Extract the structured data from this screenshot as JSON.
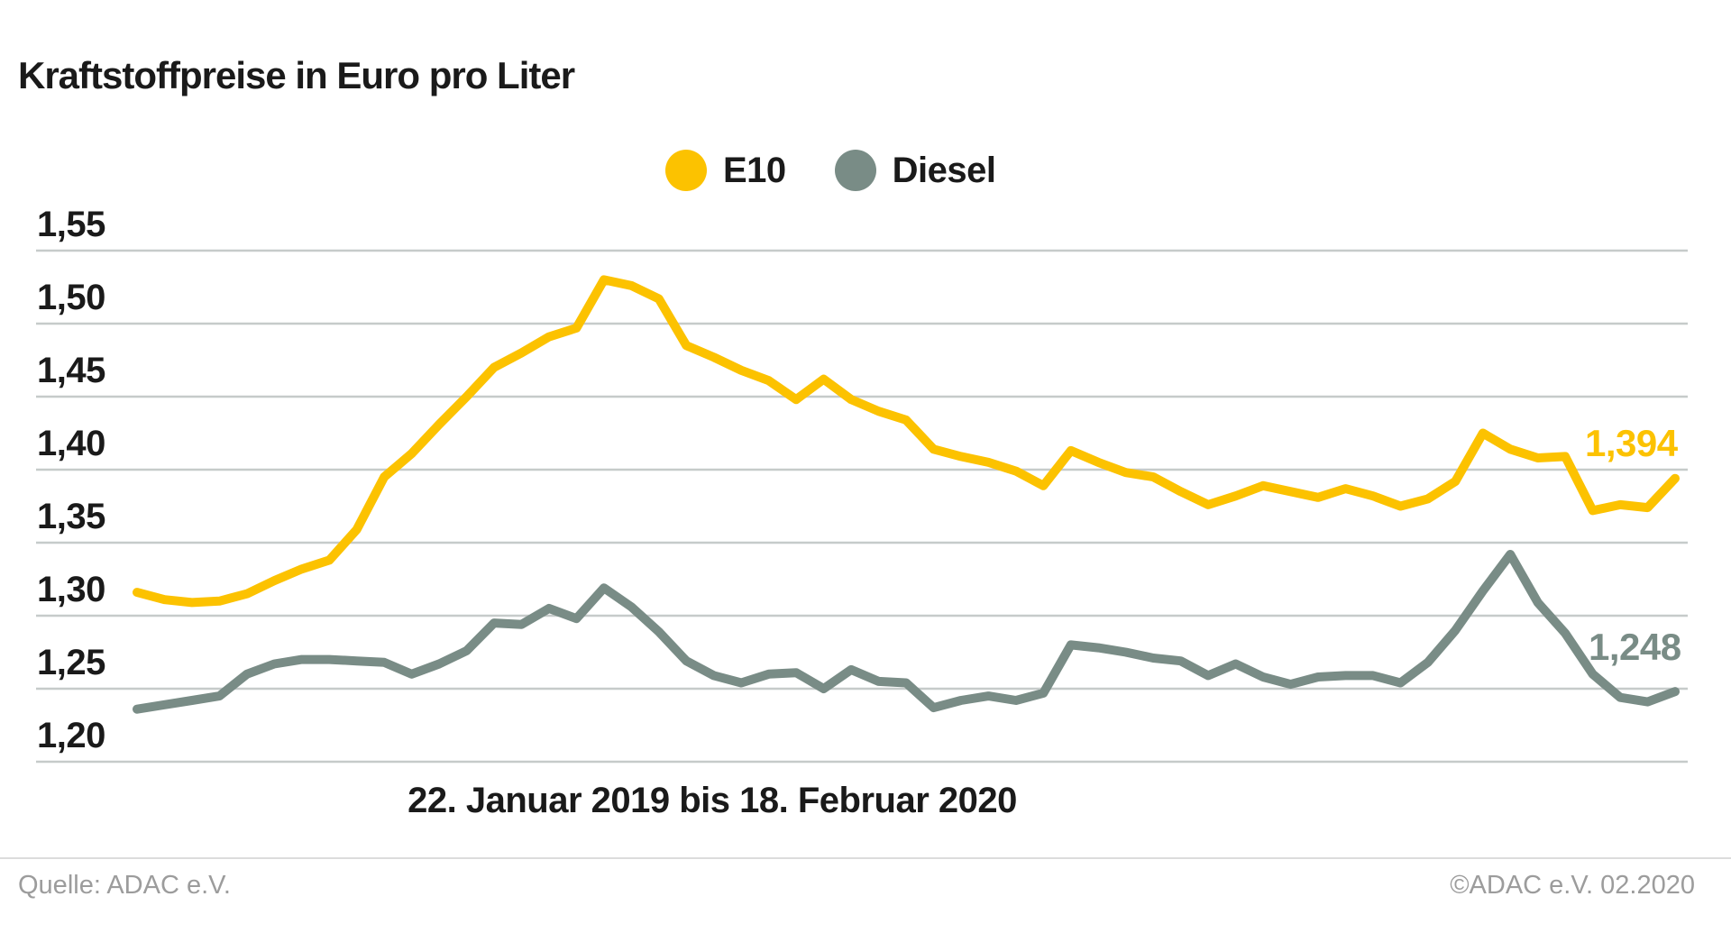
{
  "title": "Kraftstoffpreise in Euro pro Liter",
  "legend": [
    {
      "label": "E10",
      "color": "#FCC200"
    },
    {
      "label": "Diesel",
      "color": "#798C86"
    }
  ],
  "chart_data": {
    "type": "line",
    "title": "Kraftstoffpreise in Euro pro Liter",
    "xlabel": "22. Januar 2019 bis 18. Februar 2020",
    "ylabel": "Euro pro Liter",
    "ylim": [
      1.2,
      1.55
    ],
    "grid": true,
    "legend_position": "top-center",
    "y_ticks": [
      "1,55",
      "1,50",
      "1,45",
      "1,40",
      "1,35",
      "1,30",
      "1,25",
      "1,20"
    ],
    "y_tick_values": [
      1.55,
      1.5,
      1.45,
      1.4,
      1.35,
      1.3,
      1.25,
      1.2
    ],
    "x_description": "57 weekly values, 22.01.2019 - 18.02.2020",
    "series": [
      {
        "name": "E10",
        "color": "#FCC200",
        "end_label": "1,394",
        "values": [
          1.316,
          1.311,
          1.309,
          1.31,
          1.315,
          1.324,
          1.332,
          1.338,
          1.359,
          1.395,
          1.411,
          1.431,
          1.45,
          1.47,
          1.48,
          1.491,
          1.497,
          1.53,
          1.526,
          1.517,
          1.485,
          1.477,
          1.468,
          1.461,
          1.448,
          1.462,
          1.448,
          1.44,
          1.434,
          1.414,
          1.409,
          1.405,
          1.399,
          1.389,
          1.413,
          1.405,
          1.398,
          1.395,
          1.385,
          1.376,
          1.382,
          1.389,
          1.385,
          1.381,
          1.387,
          1.382,
          1.375,
          1.38,
          1.392,
          1.425,
          1.414,
          1.408,
          1.409,
          1.372,
          1.376,
          1.374,
          1.394
        ]
      },
      {
        "name": "Diesel",
        "color": "#798C86",
        "end_label": "1,248",
        "values": [
          1.236,
          1.239,
          1.242,
          1.245,
          1.26,
          1.267,
          1.27,
          1.27,
          1.269,
          1.268,
          1.26,
          1.267,
          1.276,
          1.295,
          1.294,
          1.305,
          1.298,
          1.319,
          1.306,
          1.289,
          1.269,
          1.259,
          1.254,
          1.26,
          1.261,
          1.25,
          1.263,
          1.255,
          1.254,
          1.237,
          1.242,
          1.245,
          1.242,
          1.247,
          1.28,
          1.278,
          1.275,
          1.271,
          1.269,
          1.259,
          1.267,
          1.258,
          1.253,
          1.258,
          1.259,
          1.259,
          1.254,
          1.268,
          1.29,
          1.317,
          1.342,
          1.309,
          1.288,
          1.26,
          1.244,
          1.241,
          1.248
        ]
      }
    ],
    "colors": {
      "gridline": "#C6CBCA",
      "text": "#1a1a1a",
      "footer_text": "#9c9c9c"
    }
  },
  "footer": {
    "source_left": "Quelle: ADAC e.V.",
    "source_right": "©ADAC e.V.  02.2020"
  }
}
